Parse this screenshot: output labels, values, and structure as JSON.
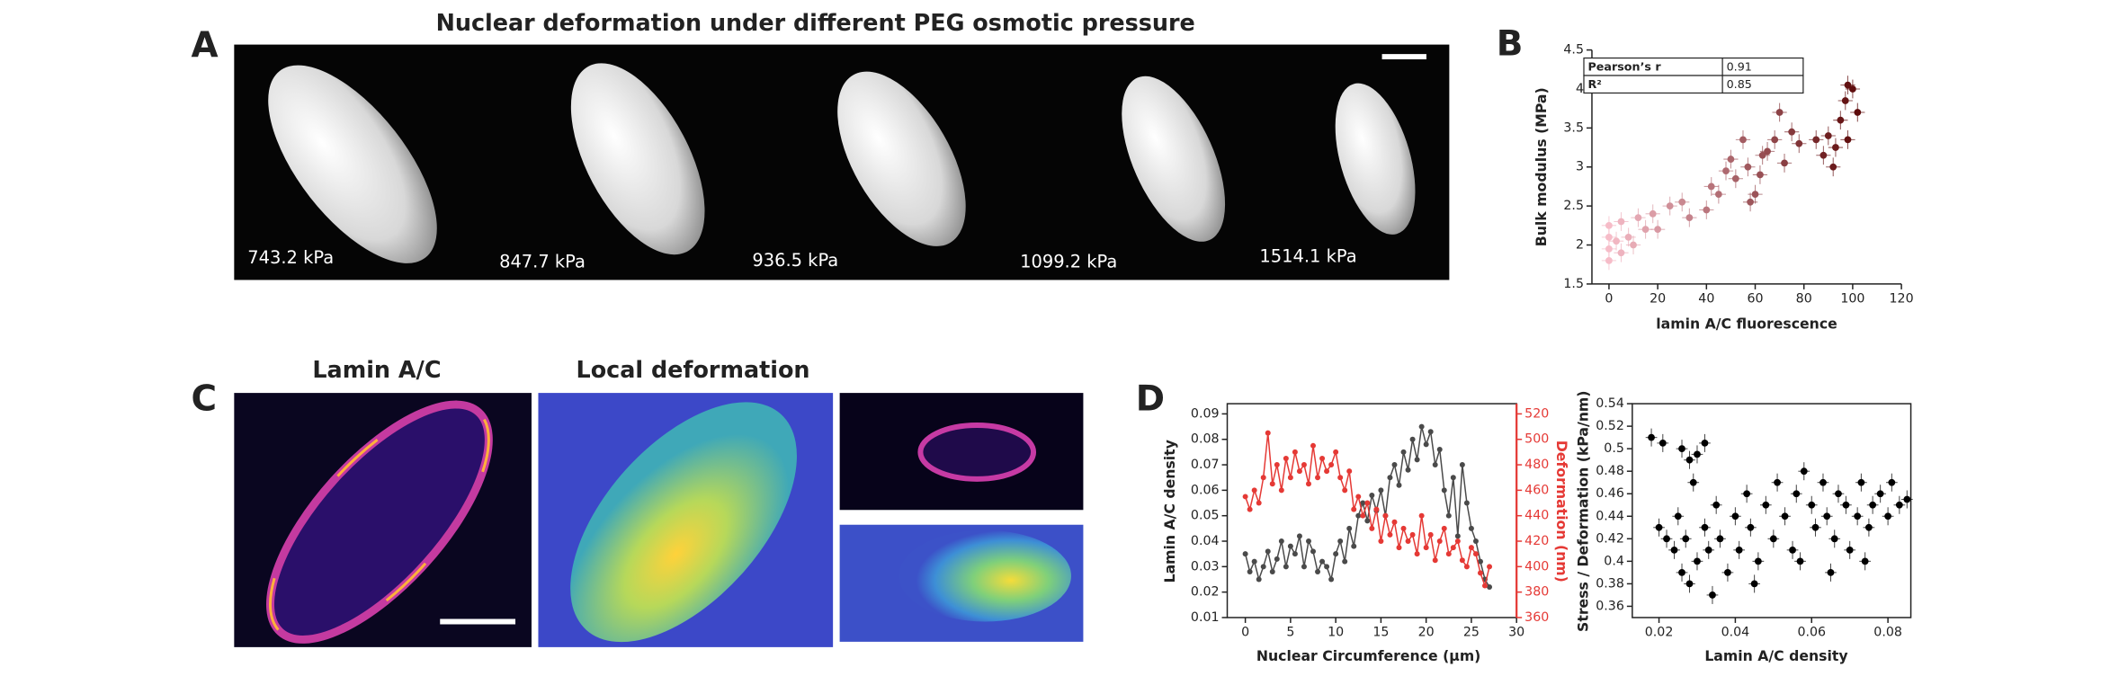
{
  "figure": {
    "panels": [
      "A",
      "B",
      "C",
      "D"
    ],
    "panel_a": {
      "title": "Nuclear deformation under different PEG osmotic pressure",
      "pressures": [
        "743.2 kPa",
        "847.7 kPa",
        "936.5 kPa",
        "1099.2 kPa",
        "1514.1 kPa"
      ]
    },
    "panel_c": {
      "titles": [
        "Lamin A/C",
        "Local deformation"
      ]
    }
  },
  "chart_data": [
    {
      "type": "scatter",
      "xlabel": "lamin A/C fluorescence",
      "ylabel": "Bulk modulus (MPa)",
      "x": [
        0,
        0,
        0,
        0,
        3,
        5,
        5,
        8,
        10,
        12,
        15,
        18,
        20,
        25,
        30,
        33,
        40,
        42,
        45,
        48,
        50,
        52,
        55,
        57,
        58,
        60,
        62,
        63,
        65,
        68,
        70,
        72,
        75,
        78,
        85,
        88,
        90,
        92,
        93,
        95,
        97,
        98,
        98,
        100,
        102
      ],
      "values": [
        1.8,
        1.95,
        2.1,
        2.25,
        2.05,
        1.9,
        2.3,
        2.1,
        2.0,
        2.35,
        2.2,
        2.4,
        2.2,
        2.5,
        2.55,
        2.35,
        2.45,
        2.75,
        2.65,
        2.95,
        3.1,
        2.85,
        3.35,
        3.0,
        2.55,
        2.65,
        2.9,
        3.15,
        3.2,
        3.35,
        3.7,
        3.05,
        3.45,
        3.3,
        3.35,
        3.15,
        3.4,
        3.0,
        3.25,
        3.6,
        3.85,
        4.05,
        3.35,
        4.0,
        3.7
      ],
      "xerr": 3,
      "yerr": 0.12,
      "color_range": [
        "#f6bcc8",
        "#5c0a0a"
      ],
      "xlim": [
        -7,
        120
      ],
      "ylim": [
        1.5,
        4.5
      ],
      "xticks": [
        0,
        20,
        40,
        60,
        80,
        100,
        120
      ],
      "yticks": [
        1.5,
        2,
        2.5,
        3,
        3.5,
        4,
        4.5
      ],
      "table": {
        "rows": [
          [
            "Pearson’s r",
            "0.91"
          ],
          [
            "R²",
            "0.85"
          ]
        ]
      }
    },
    {
      "type": "line",
      "xlabel": "Nuclear Circumference (μm)",
      "ylabel": "Lamin A/C density",
      "y2label": "Deformation (nm)",
      "x": [
        0,
        0.5,
        1,
        1.5,
        2,
        2.5,
        3,
        3.5,
        4,
        4.5,
        5,
        5.5,
        6,
        6.5,
        7,
        7.5,
        8,
        8.5,
        9,
        9.5,
        10,
        10.5,
        11,
        11.5,
        12,
        12.5,
        13,
        13.5,
        14,
        14.5,
        15,
        15.5,
        16,
        16.5,
        17,
        17.5,
        18,
        18.5,
        19,
        19.5,
        20,
        20.5,
        21,
        21.5,
        22,
        22.5,
        23,
        23.5,
        24,
        24.5,
        25,
        25.5,
        26,
        26.5,
        27
      ],
      "series": [
        {
          "color": "#4a4a4a",
          "values": [
            0.035,
            0.028,
            0.032,
            0.025,
            0.03,
            0.036,
            0.028,
            0.033,
            0.04,
            0.03,
            0.038,
            0.035,
            0.042,
            0.03,
            0.04,
            0.036,
            0.028,
            0.032,
            0.03,
            0.025,
            0.035,
            0.04,
            0.032,
            0.045,
            0.038,
            0.05,
            0.055,
            0.048,
            0.058,
            0.052,
            0.06,
            0.05,
            0.065,
            0.07,
            0.062,
            0.075,
            0.068,
            0.08,
            0.072,
            0.085,
            0.078,
            0.083,
            0.07,
            0.076,
            0.06,
            0.05,
            0.065,
            0.042,
            0.07,
            0.055,
            0.045,
            0.04,
            0.032,
            0.025,
            0.022
          ]
        },
        {
          "color": "#e53935",
          "axis": "y2",
          "values": [
            455,
            445,
            460,
            450,
            470,
            505,
            465,
            480,
            460,
            485,
            470,
            490,
            475,
            480,
            465,
            495,
            470,
            485,
            475,
            480,
            490,
            470,
            460,
            475,
            445,
            455,
            440,
            450,
            430,
            445,
            420,
            440,
            425,
            435,
            415,
            430,
            420,
            425,
            410,
            440,
            415,
            425,
            405,
            420,
            430,
            410,
            415,
            420,
            405,
            400,
            415,
            410,
            395,
            385,
            400
          ]
        }
      ],
      "xlim": [
        -2,
        30
      ],
      "ylim": [
        0.01,
        0.094
      ],
      "y2lim": [
        360,
        528
      ],
      "xticks": [
        0,
        5,
        10,
        15,
        20,
        25,
        30
      ],
      "yticks": [
        0.01,
        0.02,
        0.03,
        0.04,
        0.05,
        0.06,
        0.07,
        0.08,
        0.09
      ],
      "y2ticks": [
        360,
        380,
        400,
        420,
        440,
        460,
        480,
        500,
        520
      ]
    },
    {
      "type": "scatter",
      "xlabel": "Lamin A/C density",
      "ylabel": "Stress / Deformation (kPa/nm)",
      "x": [
        0.018,
        0.021,
        0.026,
        0.028,
        0.03,
        0.032,
        0.029,
        0.02,
        0.022,
        0.024,
        0.025,
        0.026,
        0.027,
        0.028,
        0.03,
        0.032,
        0.033,
        0.035,
        0.036,
        0.038,
        0.04,
        0.041,
        0.043,
        0.044,
        0.046,
        0.048,
        0.05,
        0.051,
        0.053,
        0.055,
        0.056,
        0.058,
        0.06,
        0.061,
        0.063,
        0.064,
        0.066,
        0.067,
        0.069,
        0.07,
        0.072,
        0.073,
        0.075,
        0.076,
        0.078,
        0.08,
        0.081,
        0.083,
        0.085,
        0.065,
        0.045,
        0.034,
        0.057,
        0.074
      ],
      "values": [
        0.51,
        0.505,
        0.5,
        0.49,
        0.495,
        0.505,
        0.47,
        0.43,
        0.42,
        0.41,
        0.44,
        0.39,
        0.42,
        0.38,
        0.4,
        0.43,
        0.41,
        0.45,
        0.42,
        0.39,
        0.44,
        0.41,
        0.46,
        0.43,
        0.4,
        0.45,
        0.42,
        0.47,
        0.44,
        0.41,
        0.46,
        0.48,
        0.45,
        0.43,
        0.47,
        0.44,
        0.42,
        0.46,
        0.45,
        0.41,
        0.44,
        0.47,
        0.43,
        0.45,
        0.46,
        0.44,
        0.47,
        0.45,
        0.455,
        0.39,
        0.38,
        0.37,
        0.4,
        0.4
      ],
      "xerr": 0.0015,
      "yerr": 0.008,
      "color": "#000000",
      "xlim": [
        0.013,
        0.086
      ],
      "ylim": [
        0.35,
        0.54
      ],
      "xticks": [
        0.02,
        0.04,
        0.06,
        0.08
      ],
      "yticks": [
        0.36,
        0.38,
        0.4,
        0.42,
        0.44,
        0.46,
        0.48,
        0.5,
        0.52,
        0.54
      ]
    }
  ]
}
